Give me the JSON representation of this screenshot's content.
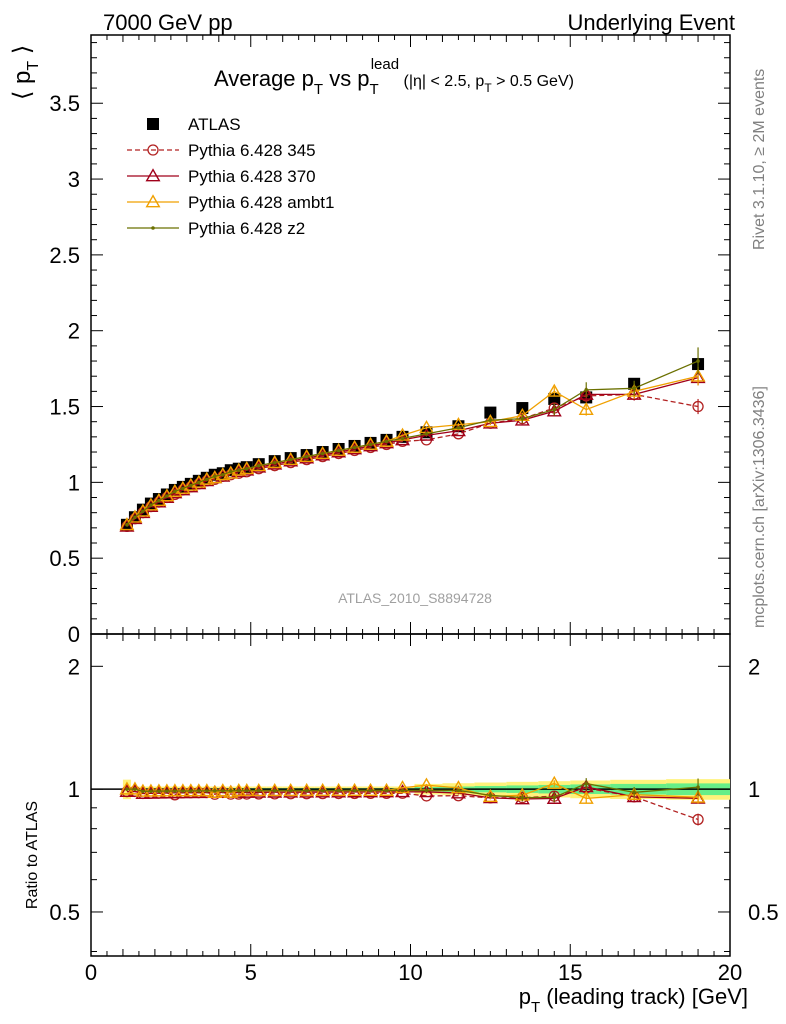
{
  "header": {
    "left": "7000 GeV pp",
    "right": "Underlying Event"
  },
  "side_labels": {
    "rivet": "Rivet 3.1.10, ≥ 2M events",
    "mcplots": "mcplots.cern.ch [arXiv:1306.3436]"
  },
  "chart_data": [
    {
      "type": "scatter",
      "panel": "main",
      "title": "Average p_T vs p_T^lead (|η| < 2.5, p_T > 0.5 GeV)",
      "ylabel": "⟨ p_T ⟩",
      "ylim": [
        0,
        3.95
      ],
      "yticks": [
        0,
        0.5,
        1,
        1.5,
        2,
        2.5,
        3,
        3.5
      ],
      "ytick_labels": [
        "0",
        "0.5",
        "1",
        "1.5",
        "2",
        "2.5",
        "3",
        "3.5"
      ],
      "xlim": [
        0,
        20
      ],
      "watermark": "ATLAS_2010_S8894728",
      "legend_position": "top-left",
      "x": [
        1.125,
        1.375,
        1.625,
        1.875,
        2.125,
        2.375,
        2.625,
        2.875,
        3.125,
        3.375,
        3.625,
        3.875,
        4.125,
        4.375,
        4.625,
        4.875,
        5.25,
        5.75,
        6.25,
        6.75,
        7.25,
        7.75,
        8.25,
        8.75,
        9.25,
        9.75,
        10.5,
        11.5,
        12.5,
        13.5,
        14.5,
        15.5,
        17.0,
        19.0
      ],
      "series": [
        {
          "name": "ATLAS",
          "color": "#000000",
          "marker": "filled-square",
          "values": [
            0.72,
            0.77,
            0.82,
            0.86,
            0.89,
            0.92,
            0.95,
            0.97,
            0.99,
            1.01,
            1.03,
            1.05,
            1.06,
            1.08,
            1.09,
            1.1,
            1.12,
            1.14,
            1.16,
            1.18,
            1.2,
            1.22,
            1.24,
            1.26,
            1.28,
            1.3,
            1.33,
            1.37,
            1.46,
            1.49,
            1.55,
            1.56,
            1.65,
            1.78
          ]
        },
        {
          "name": "Pythia 6.428 345",
          "color": "#b22222",
          "marker": "open-circle",
          "dashed": true,
          "values": [
            0.71,
            0.76,
            0.8,
            0.84,
            0.87,
            0.9,
            0.92,
            0.95,
            0.97,
            0.99,
            1.01,
            1.02,
            1.04,
            1.05,
            1.06,
            1.07,
            1.09,
            1.11,
            1.13,
            1.15,
            1.17,
            1.19,
            1.21,
            1.23,
            1.25,
            1.27,
            1.28,
            1.32,
            1.39,
            1.42,
            1.49,
            1.57,
            1.58,
            1.5
          ],
          "err": [
            0,
            0,
            0,
            0,
            0,
            0,
            0,
            0,
            0,
            0,
            0,
            0,
            0,
            0,
            0,
            0,
            0,
            0,
            0,
            0,
            0,
            0,
            0,
            0,
            0,
            0,
            0,
            0,
            0.01,
            0.02,
            0.03,
            0.04,
            0.04,
            0.05
          ]
        },
        {
          "name": "Pythia 6.428 370",
          "color": "#a0001a",
          "marker": "open-triangle",
          "values": [
            0.71,
            0.76,
            0.8,
            0.84,
            0.87,
            0.9,
            0.93,
            0.95,
            0.97,
            0.99,
            1.01,
            1.03,
            1.04,
            1.06,
            1.07,
            1.08,
            1.1,
            1.12,
            1.14,
            1.16,
            1.18,
            1.2,
            1.22,
            1.24,
            1.26,
            1.28,
            1.31,
            1.34,
            1.39,
            1.41,
            1.47,
            1.58,
            1.58,
            1.69
          ],
          "err": [
            0,
            0,
            0,
            0,
            0,
            0,
            0,
            0,
            0,
            0,
            0,
            0,
            0,
            0,
            0,
            0,
            0,
            0,
            0,
            0,
            0,
            0,
            0,
            0,
            0,
            0,
            0.01,
            0.01,
            0.01,
            0.02,
            0.03,
            0.04,
            0.04,
            0.05
          ]
        },
        {
          "name": "Pythia 6.428 ambt1",
          "color": "#f0a000",
          "marker": "open-triangle",
          "values": [
            0.72,
            0.77,
            0.81,
            0.85,
            0.88,
            0.91,
            0.94,
            0.96,
            0.98,
            1.0,
            1.02,
            1.03,
            1.05,
            1.06,
            1.08,
            1.09,
            1.11,
            1.13,
            1.15,
            1.17,
            1.19,
            1.21,
            1.23,
            1.25,
            1.27,
            1.31,
            1.36,
            1.38,
            1.4,
            1.44,
            1.6,
            1.48,
            1.6,
            1.7
          ],
          "err": [
            0,
            0,
            0,
            0,
            0,
            0,
            0,
            0,
            0,
            0,
            0,
            0,
            0,
            0,
            0,
            0,
            0,
            0,
            0,
            0,
            0,
            0,
            0,
            0,
            0,
            0,
            0.01,
            0.01,
            0.02,
            0.02,
            0.03,
            0.04,
            0.05,
            0.06
          ]
        },
        {
          "name": "Pythia 6.428 z2",
          "color": "#6b7000",
          "marker": "dot",
          "values": [
            0.72,
            0.77,
            0.81,
            0.85,
            0.88,
            0.91,
            0.94,
            0.96,
            0.98,
            1.0,
            1.02,
            1.04,
            1.05,
            1.07,
            1.08,
            1.09,
            1.11,
            1.13,
            1.15,
            1.17,
            1.19,
            1.21,
            1.23,
            1.25,
            1.27,
            1.29,
            1.32,
            1.36,
            1.41,
            1.42,
            1.48,
            1.61,
            1.62,
            1.8
          ],
          "err": [
            0,
            0,
            0,
            0,
            0,
            0,
            0,
            0,
            0,
            0,
            0,
            0,
            0,
            0,
            0,
            0,
            0,
            0,
            0,
            0,
            0,
            0,
            0,
            0,
            0,
            0,
            0.01,
            0.01,
            0.02,
            0.03,
            0.04,
            0.05,
            0.05,
            0.09
          ]
        }
      ]
    },
    {
      "type": "scatter",
      "panel": "ratio",
      "ylabel": "Ratio to ATLAS",
      "xlabel": "p_T (leading track) [GeV]",
      "xlim": [
        0,
        20
      ],
      "ylim": [
        0.39,
        2.4
      ],
      "log_y": true,
      "xticks": [
        0,
        5,
        10,
        15,
        20
      ],
      "xtick_labels": [
        "0",
        "5",
        "10",
        "15",
        "20"
      ],
      "yticks": [
        0.5,
        1,
        2
      ],
      "ytick_labels": [
        "0.5",
        "1",
        "2"
      ],
      "band_colors": {
        "stat": "#66ee88",
        "total": "#fff27a"
      }
    }
  ]
}
